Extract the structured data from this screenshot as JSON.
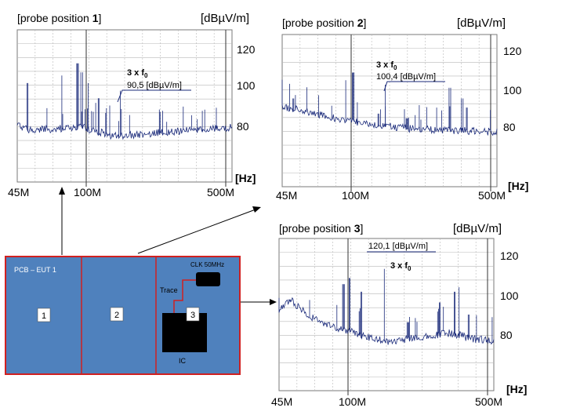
{
  "panels": [
    {
      "title_text": "[probe position ",
      "title_num": "1",
      "title_close": "]",
      "unit": "[dBµV/m]",
      "yticks": [
        "120",
        "100",
        "80"
      ],
      "hz_label": "[Hz]",
      "xticks": [
        "45M",
        "100M",
        "500M"
      ],
      "annot_value": "90,5 [dBµV/m]",
      "annot_mult": "3 x f",
      "annot_sub": "0"
    },
    {
      "title_text": "[probe position ",
      "title_num": "2",
      "title_close": "]",
      "unit": "[dBµV/m]",
      "yticks": [
        "120",
        "100",
        "80"
      ],
      "hz_label": "[Hz]",
      "xticks": [
        "45M",
        "100M",
        "500M"
      ],
      "annot_value": "100,4 [dBµV/m]",
      "annot_mult": "3 x f",
      "annot_sub": "0"
    },
    {
      "title_text": "[probe position ",
      "title_num": "3",
      "title_close": "]",
      "unit": "[dBµV/m]",
      "yticks": [
        "120",
        "100",
        "80"
      ],
      "hz_label": "[Hz]",
      "xticks": [
        "45M",
        "100M",
        "500M"
      ],
      "annot_value": "120,1 [dBµV/m]",
      "annot_mult": "3 x f",
      "annot_sub": "0"
    }
  ],
  "pcb": {
    "label": "PCB – EUT 1",
    "zones": [
      "1",
      "2",
      "3"
    ],
    "clock": "CLK 50MHz",
    "trace": "Trace",
    "ic": "IC"
  },
  "colors": {
    "spectrum": "#1a2a7a",
    "grid": "#b8b8b8",
    "pcb_fill": "#4f81bd",
    "pcb_border": "#d02020"
  }
}
